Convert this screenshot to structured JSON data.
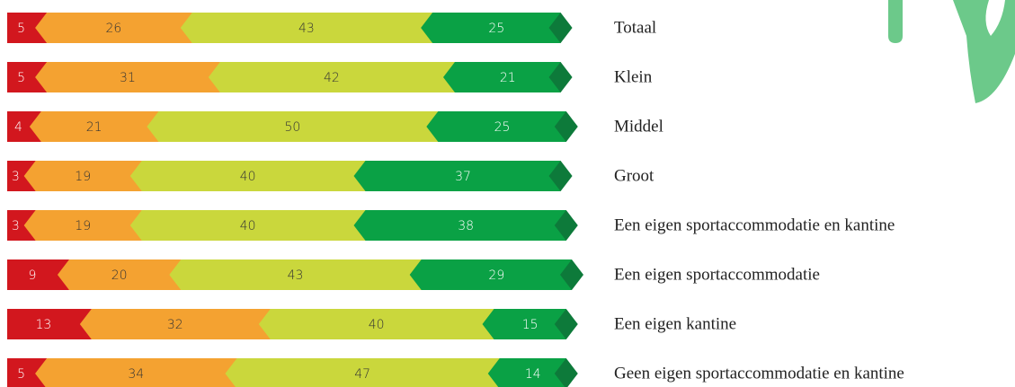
{
  "chart_data": {
    "type": "stacked-barh",
    "categories": [
      "Totaal",
      "Klein",
      "Middel",
      "Groot",
      "Een eigen sportaccommodatie en kantine",
      "Een eigen sportaccommodatie",
      "Een eigen kantine",
      "Geen eigen sportaccommodatie en kantine"
    ],
    "series": [
      {
        "color": "#d2171e",
        "label_color": "#ffffff",
        "values": [
          5,
          5,
          4,
          3,
          3,
          9,
          13,
          5
        ]
      },
      {
        "color": "#f4a231",
        "label_color": "#333333",
        "values": [
          26,
          31,
          21,
          19,
          19,
          20,
          32,
          34
        ]
      },
      {
        "color": "#cad73c",
        "label_color": "#333333",
        "values": [
          43,
          42,
          50,
          40,
          40,
          43,
          40,
          47
        ]
      },
      {
        "color": "#0aa145",
        "label_color": "#ffffff",
        "values": [
          25,
          21,
          25,
          37,
          38,
          29,
          15,
          14
        ]
      }
    ],
    "tip_color": "#0d7a3a"
  }
}
